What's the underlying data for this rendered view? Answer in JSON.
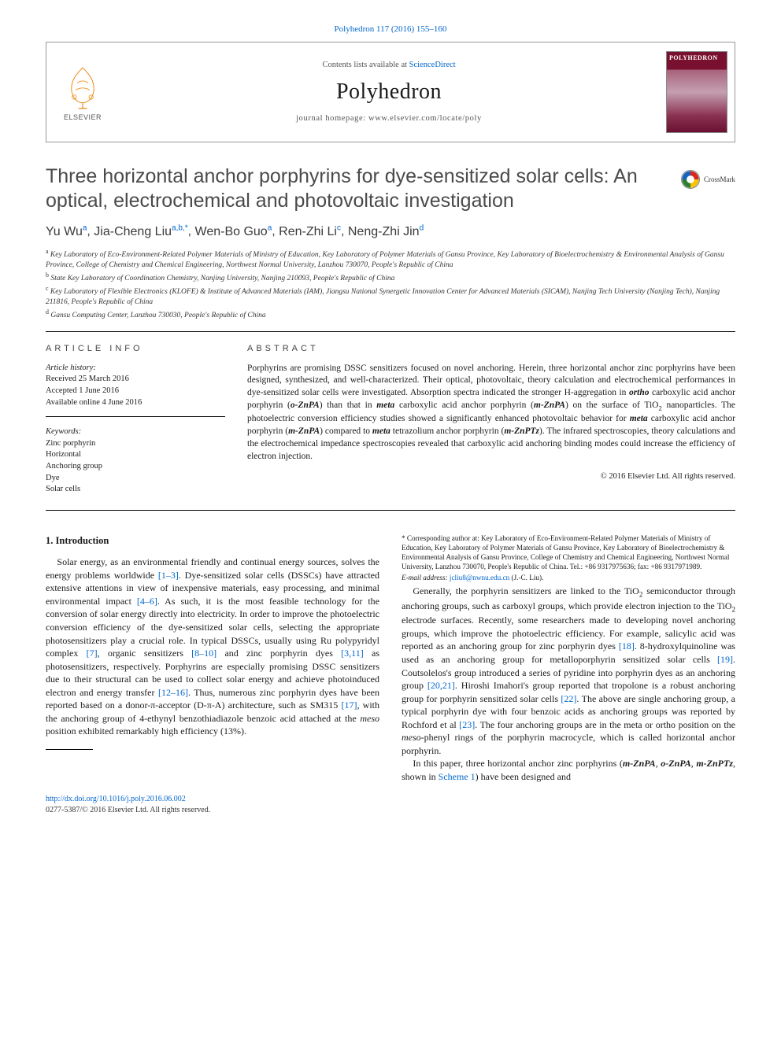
{
  "citation": {
    "text": "Polyhedron 117 (2016) 155–160",
    "href": "#"
  },
  "header": {
    "contents_available_prefix": "Contents lists available at ",
    "contents_available_link": "ScienceDirect",
    "journal_name": "Polyhedron",
    "homepage": "journal homepage: www.elsevier.com/locate/poly",
    "publisher_label": "ELSEVIER",
    "cover_title": "POLYHEDRON"
  },
  "article": {
    "title": "Three horizontal anchor porphyrins for dye-sensitized solar cells: An optical, electrochemical and photovoltaic investigation",
    "crossmark_label": "CrossMark"
  },
  "authors": [
    {
      "name": "Yu Wu",
      "sup": "a"
    },
    {
      "name": "Jia-Cheng Liu",
      "sup": "a,b,*"
    },
    {
      "name": "Wen-Bo Guo",
      "sup": "a"
    },
    {
      "name": "Ren-Zhi Li",
      "sup": "c"
    },
    {
      "name": "Neng-Zhi Jin",
      "sup": "d"
    }
  ],
  "affiliations": [
    {
      "sup": "a",
      "text": "Key Laboratory of Eco-Environment-Related Polymer Materials of Ministry of Education, Key Laboratory of Polymer Materials of Gansu Province, Key Laboratory of Bioelectrochemistry & Environmental Analysis of Gansu Province, College of Chemistry and Chemical Engineering, Northwest Normal University, Lanzhou 730070, People's Republic of China"
    },
    {
      "sup": "b",
      "text": "State Key Laboratory of Coordination Chemistry, Nanjing University, Nanjing 210093, People's Republic of China"
    },
    {
      "sup": "c",
      "text": "Key Laboratory of Flexible Electronics (KLOFE) & Institute of Advanced Materials (IAM), Jiangsu National Synergetic Innovation Center for Advanced Materials (SICAM), Nanjing Tech University (Nanjing Tech), Nanjing 211816, People's Republic of China"
    },
    {
      "sup": "d",
      "text": "Gansu Computing Center, Lanzhou 730030, People's Republic of China"
    }
  ],
  "info_heading": "ARTICLE INFO",
  "abstract_heading": "ABSTRACT",
  "history": {
    "label": "Article history:",
    "received": "Received 25 March 2016",
    "accepted": "Accepted 1 June 2016",
    "online": "Available online 4 June 2016"
  },
  "keywords": {
    "label": "Keywords:",
    "items": [
      "Zinc porphyrin",
      "Horizontal",
      "Anchoring group",
      "Dye",
      "Solar cells"
    ]
  },
  "abstract_text_parts": [
    "Porphyrins are promising DSSC sensitizers focused on novel anchoring. Herein, three horizontal anchor zinc porphyrins have been designed, synthesized, and well-characterized. Their optical, photovoltaic, theory calculation and electrochemical performances in dye-sensitized solar cells were investigated. Absorption spectra indicated the stronger H-aggregation in ",
    " carboxylic acid anchor porphyrin (",
    ") than that in ",
    " carboxylic acid anchor porphyrin (",
    ") on the surface of TiO",
    " nanoparticles. The photoelectric conversion efficiency studies showed a significantly enhanced photovoltaic behavior for ",
    " carboxylic acid anchor porphyrin (",
    ") compared to ",
    " tetrazolium anchor porphyrin (",
    "). The infrared spectroscopies, theory calculations and the electrochemical impedance spectroscopies revealed that carboxylic acid anchoring binding modes could increase the efficiency of electron injection."
  ],
  "abstract_emphases": {
    "ortho": "ortho",
    "meta": "meta",
    "oZnPA": "o-ZnPA",
    "mZnPA": "m-ZnPA",
    "mZnPTz": "m-ZnPTz"
  },
  "abstract_copyright": "© 2016 Elsevier Ltd. All rights reserved.",
  "section1_heading": "1. Introduction",
  "intro_p1": {
    "a": "Solar energy, as an environmental friendly and continual energy sources, solves the energy problems worldwide ",
    "r1": "[1–3]",
    "b": ". Dye-sensitized solar cells (DSSCs) have attracted extensive attentions in view of inexpensive materials, easy processing, and minimal environmental impact ",
    "r2": "[4–6]",
    "c": ". As such, it is the most feasible technology for the conversion of solar energy directly into electricity. In order to improve the photoelectric conversion efficiency of the dye-sensitized solar cells, selecting the appropriate photosensitizers play a crucial role. In typical DSSCs, usually using Ru polypyridyl complex ",
    "r3": "[7]",
    "d": ", organic sensitizers ",
    "r4": "[8–10]",
    "e": " and zinc porphyrin dyes ",
    "r5": "[3,11]",
    "f": " as photosensitizers, respectively. Porphyrins are especially promising DSSC sensitizers due to their structural can be used to collect solar energy and achieve photoinduced electron and energy transfer ",
    "r6": "[12–16]",
    "g": ". Thus, numerous zinc porphyrin dyes have been reported based on a donor-π-acceptor (D-π-A) architecture, such as SM315 ",
    "r7": "[17]",
    "h": ", with the anchoring group of 4-ethynyl benzothiadiazole benzoic acid attached at the ",
    "meso": "meso",
    "i": " position exhibited remarkably high efficiency (13%)."
  },
  "intro_p2": {
    "a": "Generally, the porphyrin sensitizers are linked to the TiO",
    "b": " semiconductor through anchoring groups, such as carboxyl groups, which provide electron injection to the TiO",
    "c": " electrode surfaces. Recently, some researchers made to developing novel anchoring groups, which improve the photoelectric efficiency. For example, salicylic acid was reported as an anchoring group for zinc porphyrin dyes ",
    "r1": "[18]",
    "d": ". 8-hydroxylquinoline was used as an anchoring group for metalloporphyrin sensitized solar cells ",
    "r2": "[19]",
    "e": ". Coutsolelos's group introduced a series of pyridine into porphyrin dyes as an anchoring group ",
    "r3": "[20,21]",
    "f": ". Hiroshi Imahori's group reported that tropolone is a robust anchoring group for porphyrin sensitized solar cells ",
    "r4": "[22]",
    "g": ". The above are single anchoring group, a typical porphyrin dye with four benzoic acids as anchoring groups was reported by Rochford et al ",
    "r5": "[23]",
    "h": ". The four anchoring groups are in the meta or ortho position on the ",
    "meso": "meso",
    "i": "-phenyl rings of the porphyrin macrocycle, which is called horizontal anchor porphyrin."
  },
  "intro_p3": {
    "a": "In this paper, three horizontal anchor zinc porphyrins (",
    "m1": "m-ZnPA",
    "b": ", ",
    "o1": "o-ZnPA",
    "c": ", ",
    "m2": "m-ZnPTz",
    "d": ", shown in ",
    "scheme": "Scheme 1",
    "e": ") have been designed and"
  },
  "footnotes": {
    "corr": "* Corresponding author at: Key Laboratory of Eco-Environment-Related Polymer Materials of Ministry of Education, Key Laboratory of Polymer Materials of Gansu Province, Key Laboratory of Bioelectrochemistry & Environmental Analysis of Gansu Province, College of Chemistry and Chemical Engineering, Northwest Normal University, Lanzhou 730070, People's Republic of China. Tel.: +86 9317975636; fax: +86 9317971989.",
    "email_label": "E-mail address: ",
    "email": "jcliu8@nwnu.edu.cn",
    "email_suffix": " (J.-C. Liu)."
  },
  "doi": {
    "url": "http://dx.doi.org/10.1016/j.poly.2016.06.002",
    "line2": "0277-5387/© 2016 Elsevier Ltd. All rights reserved."
  },
  "colors": {
    "link": "#0066cc",
    "title_gray": "#4a4a4a",
    "elsevier_orange": "#ee7f00",
    "cover_maroon": "#7a1030"
  }
}
